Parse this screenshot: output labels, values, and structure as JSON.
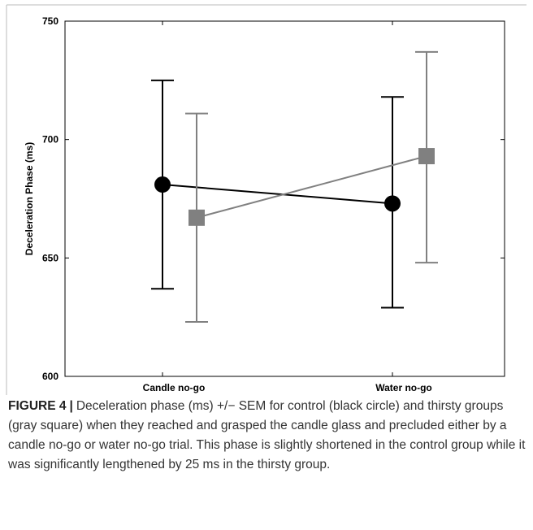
{
  "chart_data": {
    "type": "line",
    "categories": [
      "Candle no-go",
      "Water no-go"
    ],
    "ylabel": "Deceleration Phase (ms)",
    "ylim": [
      600,
      750
    ],
    "yticks": [
      600,
      650,
      700,
      750
    ],
    "grid": false,
    "series": [
      {
        "marker": "circle",
        "color": "#000000",
        "values": [
          681,
          673
        ],
        "error_low": [
          637,
          629
        ],
        "error_high": [
          725,
          718
        ]
      },
      {
        "marker": "square",
        "color": "#808080",
        "values": [
          667,
          693
        ],
        "error_low": [
          623,
          648
        ],
        "error_high": [
          711,
          737
        ]
      }
    ]
  },
  "caption": {
    "label": "FIGURE 4",
    "separator": "|",
    "text": "Deceleration phase (ms) +/− SEM for control (black circle) and thirsty groups (gray square) when they reached and grasped the candle glass and precluded either by a candle no-go or water no-go trial. This phase is slightly shortened in the control group while it was significantly lengthened by 25 ms in the thirsty group."
  }
}
